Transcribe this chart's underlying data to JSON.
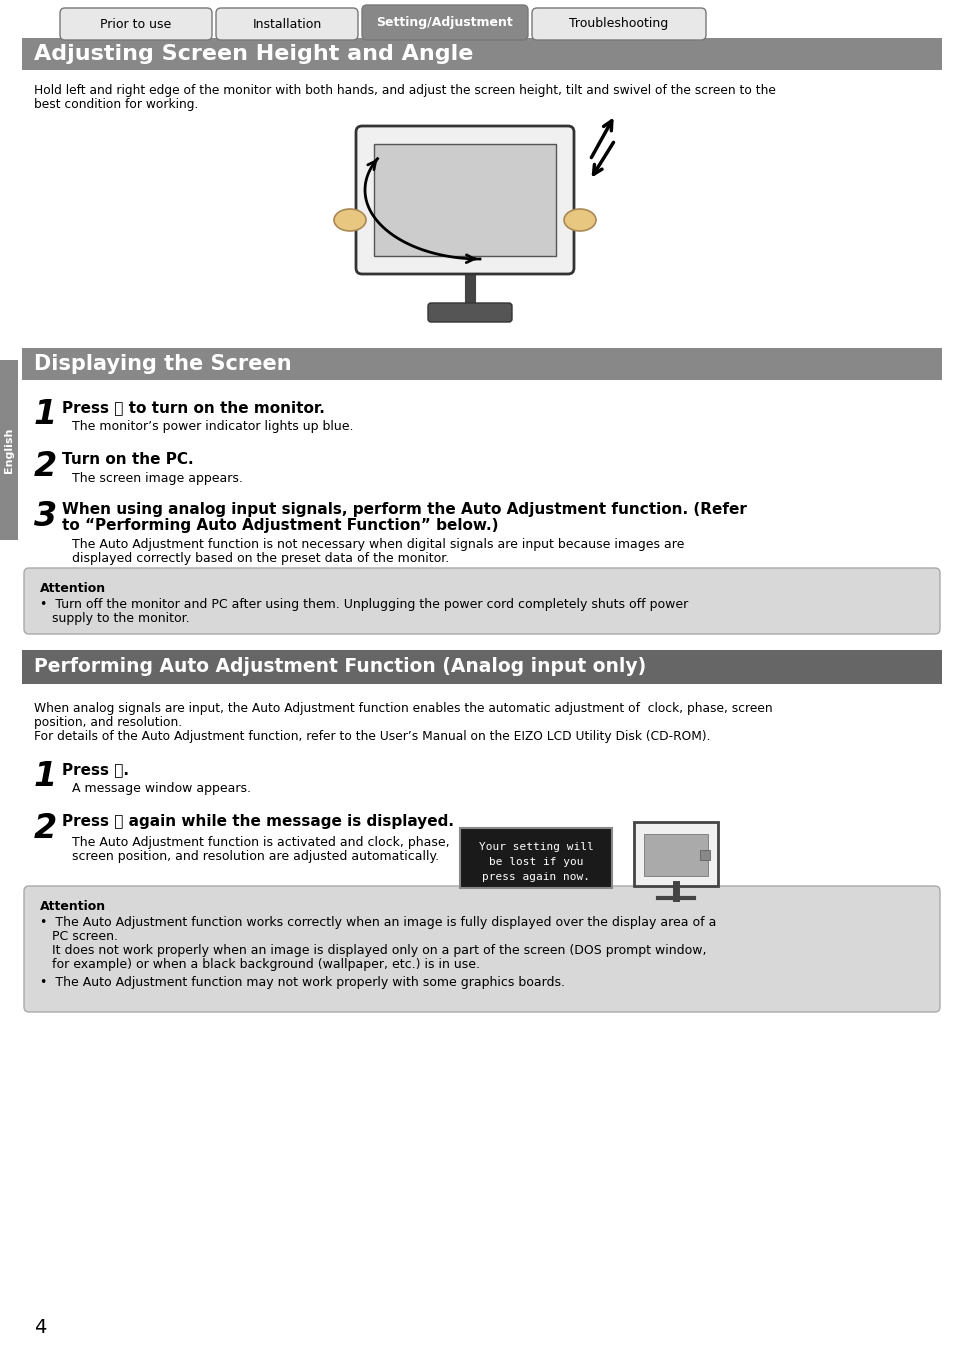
{
  "bg_color": "#ffffff",
  "tab_labels": [
    "Prior to use",
    "Installation",
    "Setting/Adjustment",
    "Troubleshooting"
  ],
  "tab_active": 2,
  "tab_color_inactive": "#e8e8e8",
  "tab_color_active": "#888888",
  "tab_border_inactive": "#999999",
  "tab_text_color_inactive": "#000000",
  "tab_text_color_active": "#ffffff",
  "header_bar_color": "#888888",
  "header_title": "Adjusting Screen Height and Angle",
  "header_title_color": "#ffffff",
  "section2_bar_color": "#888888",
  "section2_title": "Displaying the Screen",
  "section2_title_color": "#ffffff",
  "section3_bar_color": "#666666",
  "section3_title": "Performing Auto Adjustment Function (Analog input only)",
  "section3_title_color": "#ffffff",
  "intro_line1": "Hold left and right edge of the monitor with both hands, and adjust the screen height, tilt and swivel of the screen to the",
  "intro_line2": "best condition for working.",
  "step1_number": "1",
  "step1_bold": "Press ⓨ to turn on the monitor.",
  "step1_normal": "The monitor’s power indicator lights up blue.",
  "step2_number": "2",
  "step2_bold": "Turn on the PC.",
  "step2_normal": "The screen image appears.",
  "step3_number": "3",
  "step3_bold_line1": "When using analog input signals, perform the Auto Adjustment function. (Refer",
  "step3_bold_line2": "to “Performing Auto Adjustment Function” below.)",
  "step3_normal_line1": "The Auto Adjustment function is not necessary when digital signals are input because images are",
  "step3_normal_line2": "displayed correctly based on the preset data of the monitor.",
  "attention1_title": "Attention",
  "attention1_line1": "•  Turn off the monitor and PC after using them. Unplugging the power cord completely shuts off power",
  "attention1_line2": "   supply to the monitor.",
  "section3_intro_line1": "When analog signals are input, the Auto Adjustment function enables the automatic adjustment of  clock, phase, screen",
  "section3_intro_line2": "position, and resolution.",
  "section3_intro_line3": "For details of the Auto Adjustment function, refer to the User’s Manual on the EIZO LCD Utility Disk (CD-ROM).",
  "s3_step1_number": "1",
  "s3_step1_bold": "Press Ⓐ.",
  "s3_step1_normal": "A message window appears.",
  "s3_step2_number": "2",
  "s3_step2_bold": "Press Ⓐ again while the message is displayed.",
  "s3_step2_normal_line1": "The Auto Adjustment function is activated and clock, phase,",
  "s3_step2_normal_line2": "screen position, and resolution are adjusted automatically.",
  "msg_line1": "Your setting will",
  "msg_line2": "be lost if you",
  "msg_line3": "press again now.",
  "attention2_title": "Attention",
  "attention2_b1_l1": "•  The Auto Adjustment function works correctly when an image is fully displayed over the display area of a",
  "attention2_b1_l2": "   PC screen.",
  "attention2_b1_l3": "   It does not work properly when an image is displayed only on a part of the screen (DOS prompt window,",
  "attention2_b1_l4": "   for example) or when a black background (wallpaper, etc.) is in use.",
  "attention2_b2": "•  The Auto Adjustment function may not work properly with some graphics boards.",
  "page_number": "4",
  "attention_bg": "#d8d8d8",
  "attention_border": "#aaaaaa",
  "sidebar_label": "English",
  "sidebar_color": "#888888",
  "sidebar_text_color": "#ffffff"
}
